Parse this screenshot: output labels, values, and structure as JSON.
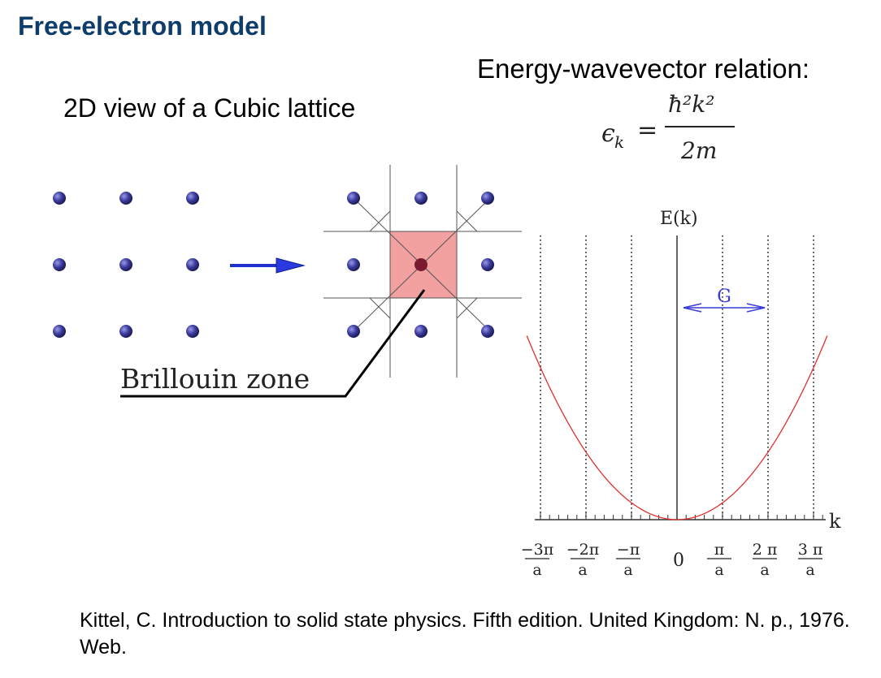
{
  "slide": {
    "title": "Free-electron model",
    "subtitle": "2D view of a Cubic lattice",
    "relation_label": "Energy-wavevector relation:",
    "formula": {
      "lhs": "ϵ",
      "lhs_sub": "k",
      "equals": "=",
      "numerator": "ħ²k²",
      "denominator": "2m"
    },
    "brillouin_label": "Brillouin zone",
    "citation": "Kittel, C. Introduction to solid state physics. Fifth edition. United Kingdom: N. p., 1976. Web."
  },
  "colors": {
    "title": "#0f3d6b",
    "curve": "#e03030",
    "arrow_blue": "#1f2fd0",
    "g_arrow": "#3a3ad6",
    "zone_fill": "#f2a0a0",
    "atom": "#3c3ca0"
  },
  "chart_data": {
    "type": "line",
    "ylabel": "E(k)",
    "xlabel": "k",
    "g_label": "G",
    "zero_label": "0",
    "tick_labels": [
      {
        "num": "−3π",
        "den": "a"
      },
      {
        "num": "−2π",
        "den": "a"
      },
      {
        "num": "−π",
        "den": "a"
      },
      {
        "num": "π",
        "den": "a"
      },
      {
        "num": "2 π",
        "den": "a"
      },
      {
        "num": "3 π",
        "den": "a"
      }
    ],
    "function": "E = k^2",
    "k_range": [
      -3.3,
      3.3
    ],
    "dotted_lines_at": [
      -3,
      -2,
      -1,
      1,
      2,
      3
    ],
    "g_arrow_from": 0,
    "g_arrow_to": 2,
    "grid": false,
    "legend": "none"
  }
}
